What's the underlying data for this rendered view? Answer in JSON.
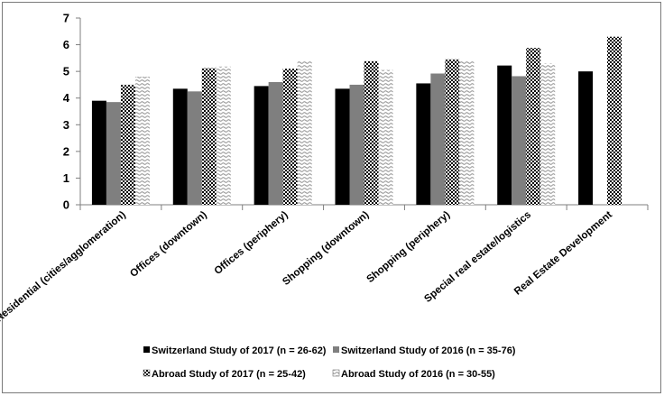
{
  "chart_data": {
    "type": "bar",
    "categories": [
      "Residential (cities/agglomeration)",
      "Offices (downtown)",
      "Offices (periphery)",
      "Shopping (downtown)",
      "Shopping (periphery)",
      "Special real estate/logistics",
      "Real Estate Development"
    ],
    "series": [
      {
        "name": "Switzerland Study of 2017 (n = 26-62)",
        "values": [
          3.9,
          4.35,
          4.45,
          4.35,
          4.55,
          5.22,
          5.0
        ],
        "color": "#000000",
        "pattern": "solid"
      },
      {
        "name": "Switzerland Study of 2016 (n = 35-76)",
        "values": [
          3.85,
          4.25,
          4.6,
          4.5,
          4.92,
          4.82,
          null
        ],
        "color": "#7f7f7f",
        "pattern": "solid"
      },
      {
        "name": "Abroad Study of 2017 (n = 25-42)",
        "values": [
          4.5,
          5.12,
          5.1,
          5.38,
          5.45,
          5.88,
          6.3
        ],
        "color": "#000000",
        "pattern": "checker"
      },
      {
        "name": "Abroad Study of 2016 (n = 30-55)",
        "values": [
          4.8,
          5.18,
          5.4,
          5.05,
          5.4,
          5.3,
          null
        ],
        "color": "#000000",
        "pattern": "wave"
      }
    ],
    "yticks": [
      0,
      1,
      2,
      3,
      4,
      5,
      6,
      7
    ],
    "ylim": [
      0,
      7
    ],
    "grid": true,
    "legend": "bottom",
    "title": "",
    "xlabel": "",
    "ylabel": ""
  }
}
